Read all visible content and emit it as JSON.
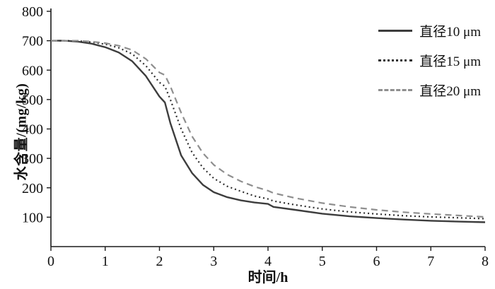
{
  "chart_data": {
    "type": "line",
    "title": "",
    "xlabel": "时间/h",
    "ylabel": "水含量/(mg/kg)",
    "xlim": [
      0,
      8
    ],
    "ylim": [
      0,
      800
    ],
    "xticks": [
      0,
      1,
      2,
      3,
      4,
      5,
      6,
      7,
      8
    ],
    "yticks": [
      100,
      200,
      300,
      400,
      500,
      600,
      700,
      800
    ],
    "grid": false,
    "legend_position": "top-right",
    "x": [
      0,
      0.25,
      0.5,
      0.75,
      1,
      1.25,
      1.5,
      1.75,
      2,
      2.1,
      2.2,
      2.4,
      2.6,
      2.8,
      3,
      3.25,
      3.5,
      3.75,
      4,
      4.1,
      4.5,
      5,
      5.5,
      6,
      6.5,
      7,
      7.5,
      8
    ],
    "series": [
      {
        "name": "直径10 μm",
        "style": "solid",
        "color": "#3d3d3d",
        "values": [
          700,
          700,
          697,
          690,
          678,
          660,
          630,
          580,
          510,
          490,
          420,
          310,
          250,
          210,
          185,
          168,
          157,
          150,
          145,
          135,
          125,
          112,
          103,
          97,
          92,
          88,
          85,
          83
        ]
      },
      {
        "name": "直径15 μm",
        "style": "dotted",
        "color": "#2f2f2f",
        "values": [
          700,
          700,
          699,
          695,
          688,
          676,
          655,
          615,
          558,
          545,
          500,
          400,
          320,
          268,
          232,
          205,
          188,
          172,
          162,
          155,
          142,
          128,
          118,
          111,
          105,
          101,
          98,
          95
        ]
      },
      {
        "name": "直径20 μm",
        "style": "dashed",
        "color": "#8f8f8f",
        "values": [
          700,
          700,
          700,
          697,
          692,
          683,
          668,
          638,
          592,
          583,
          545,
          455,
          375,
          318,
          278,
          245,
          222,
          204,
          190,
          182,
          165,
          148,
          135,
          125,
          117,
          111,
          106,
          101
        ]
      }
    ],
    "axis_color": "#1a1a1a",
    "tick_label_color": "#111111"
  }
}
